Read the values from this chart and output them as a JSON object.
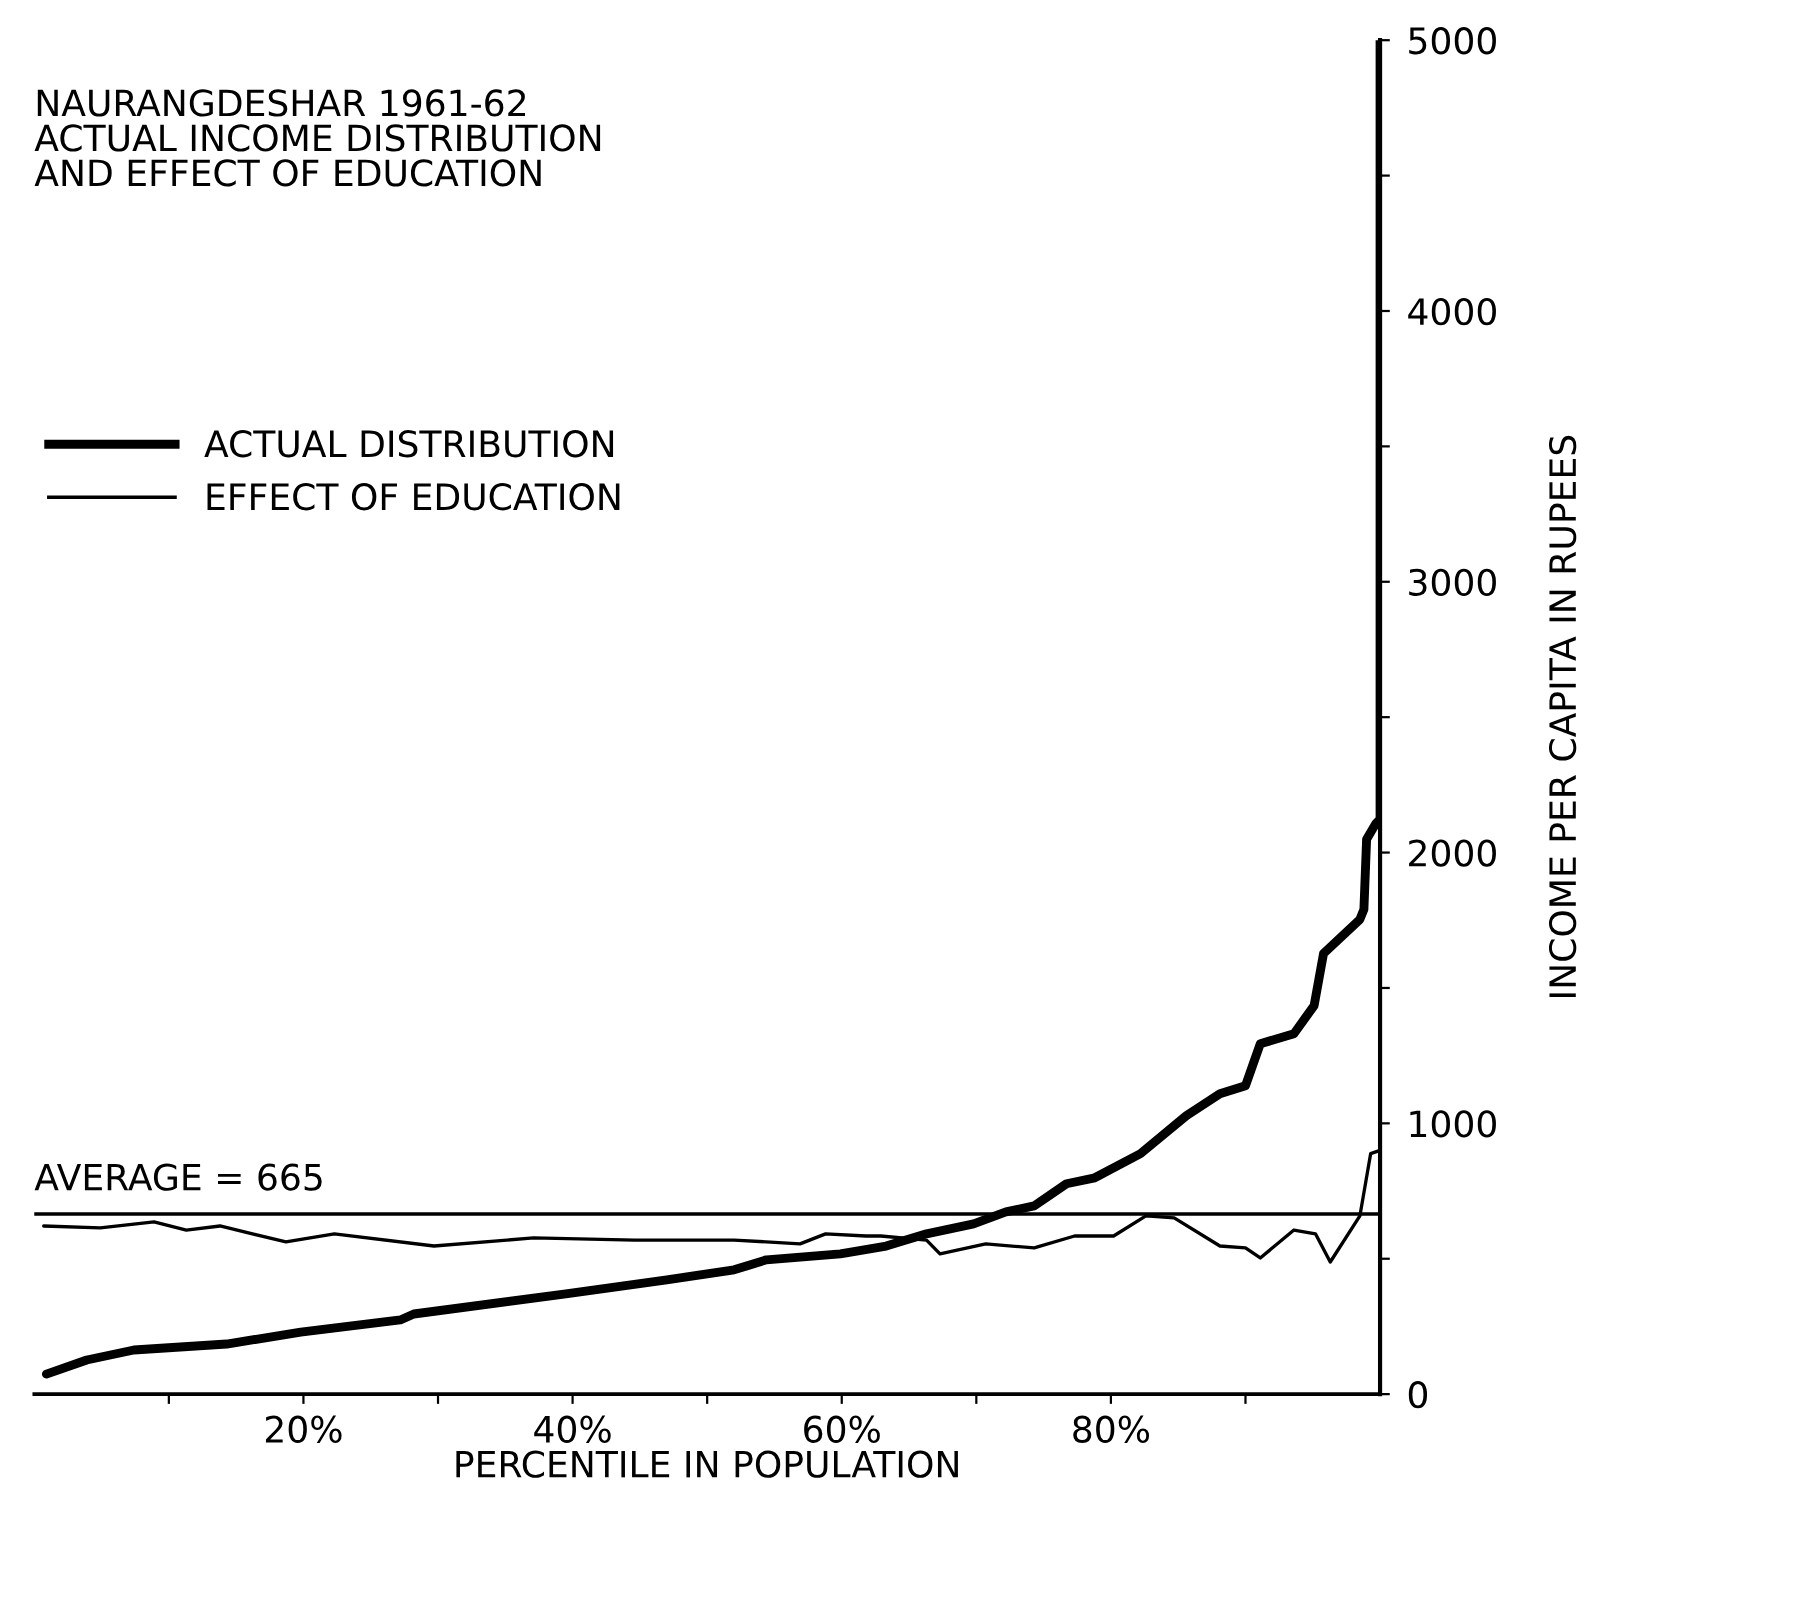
{
  "chart_data": {
    "type": "line",
    "title": "NAURANGDESHAR 1961-62\nACTUAL INCOME DISTRIBUTION\nAND EFFECT OF EDUCATION",
    "xlabel": "PERCENTILE IN POPULATION",
    "ylabel": "INCOME PER CAPITA IN RUPEES",
    "series": [
      {
        "name": "ACTUAL DISTRIBUTION",
        "color": "#000000",
        "x": [
          0.9,
          3.9,
          7.4,
          14.3,
          19.8,
          27.2,
          28.2,
          39.5,
          47,
          52,
          54.4,
          59.9,
          63.3,
          66.3,
          69.8,
          72.2,
          74.3,
          76.7,
          78.8,
          82.2,
          85.6,
          88.1,
          90,
          91.1,
          93.6,
          95.1,
          95.8,
          98.5,
          98.8,
          99,
          99.7,
          100,
          100
        ],
        "values": [
          74,
          126,
          163,
          185,
          229,
          274,
          296,
          370,
          422,
          459,
          496,
          518,
          547,
          592,
          629,
          673,
          695,
          777,
          799,
          888,
          1028,
          1109,
          1139,
          1294,
          1331,
          1435,
          1627,
          1753,
          1790,
          2049,
          2108,
          2123,
          5000
        ]
      },
      {
        "name": "EFFECT OF EDUCATION",
        "color": "#000000",
        "x": [
          0.7,
          4.9,
          8.9,
          11.3,
          13.8,
          18.7,
          22.3,
          29.7,
          37.1,
          44.6,
          52,
          56.9,
          58.8,
          61.8,
          62.9,
          66.3,
          67.3,
          70.7,
          74.3,
          77.3,
          80.2,
          82.6,
          84.7,
          88.1,
          90,
          91.1,
          93.6,
          95.2,
          96.3,
          98.5,
          99.3,
          100
        ],
        "values": [
          621,
          614,
          636,
          606,
          621,
          562,
          592,
          547,
          577,
          569,
          569,
          555,
          592,
          584,
          584,
          569,
          518,
          555,
          540,
          584,
          584,
          658,
          651,
          547,
          540,
          503,
          606,
          592,
          488,
          658,
          888,
          900
        ]
      }
    ],
    "xlim": [
      0,
      100
    ],
    "xticks": [
      {
        "value": 10,
        "label": null
      },
      {
        "value": 20,
        "label": "20%"
      },
      {
        "value": 30,
        "label": null
      },
      {
        "value": 40,
        "label": "40%"
      },
      {
        "value": 50,
        "label": null
      },
      {
        "value": 60,
        "label": "60%"
      },
      {
        "value": 70,
        "label": null
      },
      {
        "value": 80,
        "label": "80%"
      },
      {
        "value": 90,
        "label": null
      }
    ],
    "ylim": [
      0,
      5000
    ],
    "yticks": [
      0,
      {
        "value": 500,
        "label": null
      },
      1000,
      {
        "value": 1500,
        "label": null
      },
      2000,
      {
        "value": 2500,
        "label": null
      },
      3000,
      {
        "value": 3500,
        "label": null
      },
      4000,
      {
        "value": 4500,
        "label": null
      },
      5000
    ],
    "ref_lines": [
      {
        "axis": "y",
        "value": 665,
        "label": "AVERAGE = 665",
        "color": "#000000"
      }
    ],
    "legend": "left",
    "grid": false
  }
}
